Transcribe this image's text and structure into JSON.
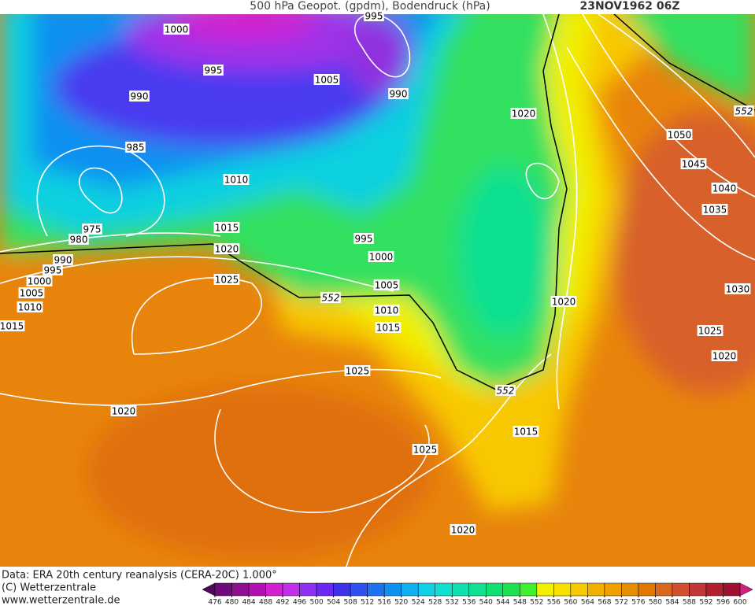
{
  "header": {
    "title": "500 hPa Geopot. (gpdm), Bodendruck (hPa)",
    "date": "23NOV1962 06Z"
  },
  "isobar_labels": [
    995,
    1000,
    995,
    1005,
    990,
    990,
    1020,
    985,
    1050,
    1045,
    1010,
    1040,
    1035,
    975,
    1015,
    995,
    980,
    1020,
    1000,
    990,
    995,
    1000,
    1025,
    1005,
    1005,
    1030,
    1020,
    1010,
    1010,
    1015,
    1015,
    1025,
    1020,
    1025,
    1020,
    1015,
    1025,
    1020
  ],
  "geopotential_labels": [
    552,
    552,
    552
  ],
  "footer": {
    "source": "Data: ERA 20th century reanalysis (CERA-20C) 1.000°",
    "copyright": "(C) Wetterzentrale",
    "url": "www.wetterzentrale.de"
  },
  "colorbar": {
    "ticks": [
      476,
      480,
      484,
      488,
      492,
      496,
      500,
      504,
      508,
      512,
      516,
      520,
      524,
      528,
      532,
      536,
      540,
      544,
      548,
      552,
      556,
      560,
      564,
      568,
      572,
      576,
      580,
      584,
      588,
      592,
      596,
      600
    ],
    "colors": [
      "#4b0a5a",
      "#6e0a7a",
      "#8c1090",
      "#b010b0",
      "#d020d0",
      "#c030e8",
      "#9030f0",
      "#6a28f0",
      "#4030e8",
      "#3050f0",
      "#2070f0",
      "#1090f0",
      "#10b0f0",
      "#10d0e8",
      "#10e0d0",
      "#10e0b0",
      "#10e090",
      "#10e070",
      "#20e050",
      "#40f030",
      "#f0f000",
      "#f8e000",
      "#f8c800",
      "#f0b000",
      "#f0a000",
      "#e88c00",
      "#e07800",
      "#d86820",
      "#d05030",
      "#c03838",
      "#b02030",
      "#a01030",
      "#d02080"
    ]
  }
}
